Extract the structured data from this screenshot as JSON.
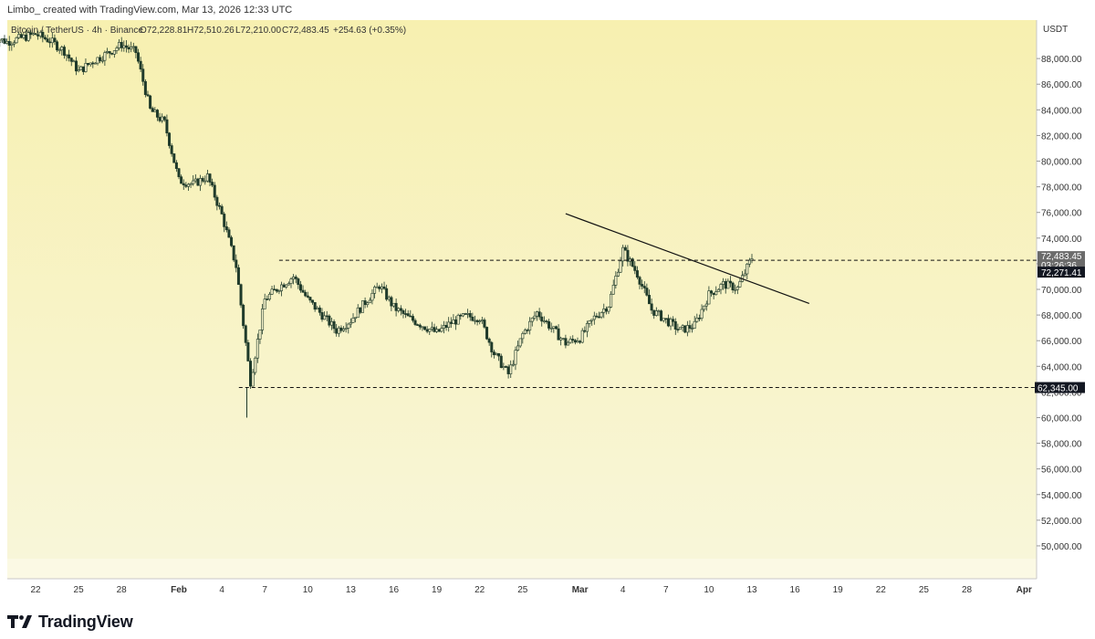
{
  "header": {
    "created_text": "Limbo_ created with TradingView.com, Mar 13, 2026 12:33 UTC"
  },
  "brand": {
    "name": "TradingView",
    "logo_icon": "tradingview-logo-icon"
  },
  "colors": {
    "background_top": "#f7f0b0",
    "background_bottom": "#f8f6d9",
    "candle": "#1f3a2a",
    "line": "#111111",
    "label_dark": "#131722",
    "label_gray": "#6b6b6b"
  },
  "chart_data": {
    "type": "candlestick",
    "symbol_line": {
      "symbol": "Bitcoin / TetherUS · 4h · Binance",
      "open": "O72,228.81",
      "high": "H72,510.26",
      "low": "L72,210.00",
      "close": "C72,483.45",
      "change": "+254.63 (+0.35%)"
    },
    "currency": "USDT",
    "ylim": [
      49000,
      91000
    ],
    "y_ticks": [
      "88,000.00",
      "86,000.00",
      "84,000.00",
      "82,000.00",
      "80,000.00",
      "78,000.00",
      "76,000.00",
      "74,000.00",
      "72,000.00",
      "70,000.00",
      "68,000.00",
      "66,000.00",
      "64,000.00",
      "62,000.00",
      "60,000.00",
      "58,000.00",
      "56,000.00",
      "54,000.00",
      "52,000.00",
      "50,000.00"
    ],
    "x_ticks": [
      "22",
      "25",
      "28",
      "Feb",
      "4",
      "7",
      "10",
      "13",
      "16",
      "19",
      "22",
      "25",
      "Mar",
      "4",
      "7",
      "10",
      "13",
      "16",
      "19",
      "22",
      "25",
      "28",
      "Apr"
    ],
    "price_labels": {
      "last_price": "72,483.45",
      "countdown": "03:26:36",
      "marker_price": "72,271.41",
      "support": "62,345.00"
    },
    "horizontal_levels": [
      72271.41,
      62345.0
    ],
    "trendline": {
      "from": [
        "Feb 28",
        75900
      ],
      "to": [
        "Mar 17",
        68900
      ]
    },
    "price_path": [
      [
        "Jan 19",
        89700
      ],
      [
        "Jan 20",
        89300
      ],
      [
        "Jan 21",
        89600
      ],
      [
        "Jan 22",
        89900
      ],
      [
        "Jan 23",
        89400
      ],
      [
        "Jan 24",
        88600
      ],
      [
        "Jan 25",
        87000
      ],
      [
        "Jan 26",
        87800
      ],
      [
        "Jan 27",
        88400
      ],
      [
        "Jan 28",
        89100
      ],
      [
        "Jan 29",
        88500
      ],
      [
        "Jan 30",
        84000
      ],
      [
        "Jan 31",
        83000
      ],
      [
        "Feb 1",
        78500
      ],
      [
        "Feb 2",
        78200
      ],
      [
        "Feb 3",
        78800
      ],
      [
        "Feb 4",
        75800
      ],
      [
        "Feb 5",
        71800
      ],
      [
        "Feb 6",
        62800
      ],
      [
        "Feb 7",
        69200
      ],
      [
        "Feb 8",
        70200
      ],
      [
        "Feb 9",
        71000
      ],
      [
        "Feb 10",
        69200
      ],
      [
        "Feb 11",
        68000
      ],
      [
        "Feb 12",
        66800
      ],
      [
        "Feb 13",
        67600
      ],
      [
        "Feb 14",
        69000
      ],
      [
        "Feb 15",
        70300
      ],
      [
        "Feb 16",
        68600
      ],
      [
        "Feb 17",
        67800
      ],
      [
        "Feb 18",
        67200
      ],
      [
        "Feb 19",
        66600
      ],
      [
        "Feb 20",
        67400
      ],
      [
        "Feb 21",
        67900
      ],
      [
        "Feb 22",
        67800
      ],
      [
        "Feb 23",
        65000
      ],
      [
        "Feb 24",
        63400
      ],
      [
        "Feb 25",
        66500
      ],
      [
        "Feb 26",
        68200
      ],
      [
        "Feb 27",
        67000
      ],
      [
        "Feb 28",
        65800
      ],
      [
        "Mar 1",
        66200
      ],
      [
        "Mar 2",
        67800
      ],
      [
        "Mar 3",
        68800
      ],
      [
        "Mar 4",
        73100
      ],
      [
        "Mar 5",
        71200
      ],
      [
        "Mar 6",
        68400
      ],
      [
        "Mar 7",
        67600
      ],
      [
        "Mar 8",
        66800
      ],
      [
        "Mar 9",
        67200
      ],
      [
        "Mar 10",
        69600
      ],
      [
        "Mar 11",
        70400
      ],
      [
        "Mar 12",
        70100
      ],
      [
        "Mar 13",
        72483
      ]
    ]
  }
}
